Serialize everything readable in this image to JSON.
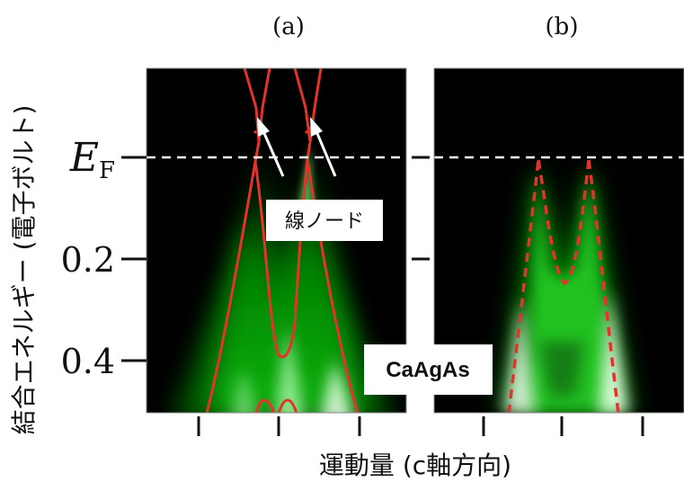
{
  "chart_data": {
    "type": "heatmap",
    "panels": [
      {
        "label": "(a)",
        "overlay": "solid red calculated band lines with line nodes (dotted crossings)",
        "annotation": "線ノード"
      },
      {
        "label": "(b)",
        "overlay": "dashed red calculated band lines"
      }
    ],
    "ylabel": "結合エネルギー (電子ボルト)",
    "xlabel": "運動量 (c軸方向)",
    "ef_label": {
      "main": "E",
      "sub": "F"
    },
    "yticks": [
      {
        "value": 0.2,
        "label": "0.2"
      },
      {
        "value": 0.4,
        "label": "0.4"
      }
    ],
    "ylim": [
      -0.18,
      0.5
    ],
    "material_label": "CaAgAs",
    "colors": {
      "intensity_low": "#000000",
      "intensity_high": "#00ff00",
      "band_line": "#e5322a",
      "fermi_line": "#ffffff"
    }
  }
}
